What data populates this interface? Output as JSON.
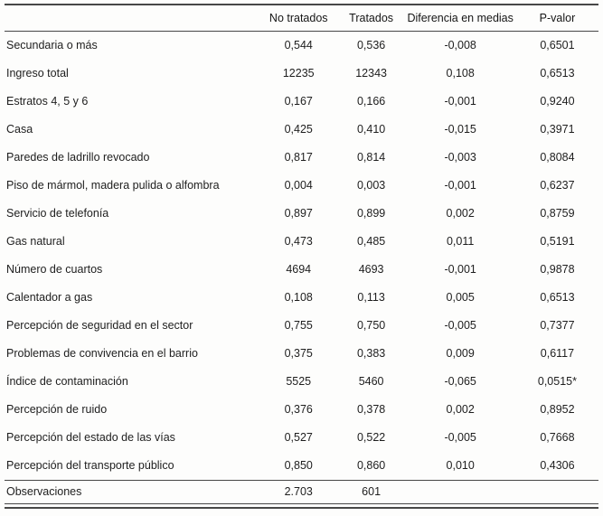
{
  "table": {
    "headers": {
      "label": "",
      "no_tratados": "No tratados",
      "tratados": "Tratados",
      "diferencia": "Diferencia en medias",
      "p_valor": "P-valor"
    },
    "rows": [
      {
        "label": "Secundaria o más",
        "no_tratados": "0,544",
        "tratados": "0,536",
        "diferencia": "-0,008",
        "p_valor": "0,6501"
      },
      {
        "label": "Ingreso total",
        "no_tratados": "12235",
        "tratados": "12343",
        "diferencia": "0,108",
        "p_valor": "0,6513"
      },
      {
        "label": "Estratos 4, 5 y 6",
        "no_tratados": "0,167",
        "tratados": "0,166",
        "diferencia": "-0,001",
        "p_valor": "0,9240"
      },
      {
        "label": "Casa",
        "no_tratados": "0,425",
        "tratados": "0,410",
        "diferencia": "-0,015",
        "p_valor": "0,3971"
      },
      {
        "label": "Paredes de ladrillo revocado",
        "no_tratados": "0,817",
        "tratados": "0,814",
        "diferencia": "-0,003",
        "p_valor": "0,8084"
      },
      {
        "label": "Piso de mármol, madera pulida o alfombra",
        "no_tratados": "0,004",
        "tratados": "0,003",
        "diferencia": "-0,001",
        "p_valor": "0,6237"
      },
      {
        "label": "Servicio de telefonía",
        "no_tratados": "0,897",
        "tratados": "0,899",
        "diferencia": "0,002",
        "p_valor": "0,8759"
      },
      {
        "label": "Gas natural",
        "no_tratados": "0,473",
        "tratados": "0,485",
        "diferencia": "0,011",
        "p_valor": "0,5191"
      },
      {
        "label": "Número de cuartos",
        "no_tratados": "4694",
        "tratados": "4693",
        "diferencia": "-0,001",
        "p_valor": "0,9878"
      },
      {
        "label": "Calentador a gas",
        "no_tratados": "0,108",
        "tratados": "0,113",
        "diferencia": "0,005",
        "p_valor": "0,6513"
      },
      {
        "label": "Percepción de seguridad en el sector",
        "no_tratados": "0,755",
        "tratados": "0,750",
        "diferencia": "-0,005",
        "p_valor": "0,7377"
      },
      {
        "label": "Problemas de convivencia en el barrio",
        "no_tratados": "0,375",
        "tratados": "0,383",
        "diferencia": "0,009",
        "p_valor": "0,6117"
      },
      {
        "label": "Índice de contaminación",
        "no_tratados": "5525",
        "tratados": "5460",
        "diferencia": "-0,065",
        "p_valor": "0,0515*"
      },
      {
        "label": "Percepción de ruido",
        "no_tratados": "0,376",
        "tratados": "0,378",
        "diferencia": "0,002",
        "p_valor": "0,8952"
      },
      {
        "label": "Percepción del estado de las vías",
        "no_tratados": "0,527",
        "tratados": "0,522",
        "diferencia": "-0,005",
        "p_valor": "0,7668"
      },
      {
        "label": "Percepción del transporte público",
        "no_tratados": "0,850",
        "tratados": "0,860",
        "diferencia": "0,010",
        "p_valor": "0,4306"
      }
    ],
    "footer": {
      "label": "Observaciones",
      "no_tratados": "2.703",
      "tratados": "601",
      "diferencia": "",
      "p_valor": ""
    }
  }
}
